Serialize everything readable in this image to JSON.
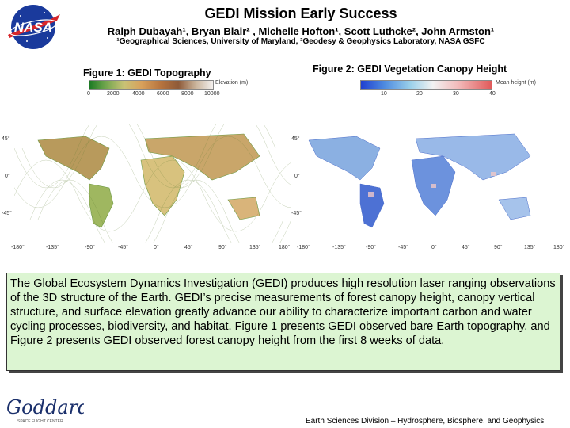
{
  "header": {
    "title": "GEDI Mission Early Success",
    "authors": "Ralph Dubayah¹, Bryan Blair² , Michelle Hofton¹, Scott Luthcke², John Armston¹",
    "affiliations": "¹Geographical Sciences, University of Maryland, ²Geodesy & Geophysics Laboratory, NASA GSFC",
    "logo_text": "NASA"
  },
  "figure1": {
    "title": "Figure 1: GEDI Topography",
    "colorbar_label": "Elevation (m)",
    "colorbar_ticks": [
      "0",
      "2000",
      "4000",
      "6000",
      "8000",
      "10000"
    ],
    "lat_ticks": [
      "45°",
      "0°",
      "-45°"
    ],
    "lon_ticks": [
      "-180°",
      "-135°",
      "-90°",
      "-45°",
      "0°",
      "45°",
      "90°",
      "135°",
      "180°"
    ]
  },
  "figure2": {
    "title": "Figure 2: GEDI Vegetation Canopy Height",
    "colorbar_label": "Mean height (m)",
    "colorbar_ticks": [
      "10",
      "20",
      "30",
      "40"
    ],
    "lat_ticks": [
      "45°",
      "0°",
      "-45°"
    ],
    "lon_ticks": [
      "-180°",
      "-135°",
      "-90°",
      "-45°",
      "0°",
      "45°",
      "90°",
      "135°",
      "180°"
    ]
  },
  "description": "The Global Ecosystem Dynamics Investigation (GEDI) produces high resolution laser ranging observations of the 3D structure of the Earth.  GEDI’s precise measurements of forest canopy height, canopy vertical structure, and surface elevation greatly advance our ability to characterize important carbon and water cycling processes, biodiversity, and habitat. Figure 1 presents GEDI observed bare Earth topography, and Figure 2 presents GEDI observed forest canopy height from the first 8 weeks of data.",
  "footer": {
    "logo_text": "Goddard",
    "logo_subtext": "SPACE FLIGHT CENTER",
    "text": "Earth Sciences Division – Hydrosphere, Biosphere, and Geophysics"
  },
  "colors": {
    "panel_bg": "#dcf5d2",
    "ocean": "#ffffff"
  }
}
